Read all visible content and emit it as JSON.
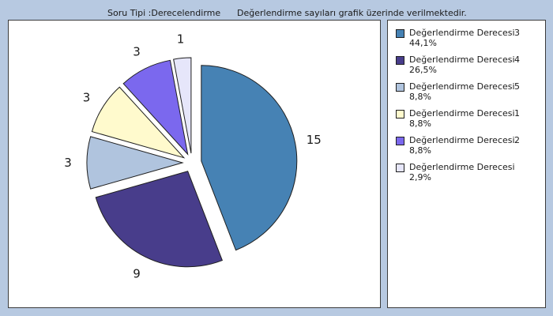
{
  "header": {
    "question_type": "Soru Tipi :Derecelendirme",
    "note": "Değerlendirme sayıları grafik üzerinde verilmektedir."
  },
  "chart_data": {
    "type": "pie",
    "title": "",
    "slices": [
      {
        "label": "Değerlendirme Derecesi",
        "code": "3",
        "value": 15,
        "percent": "44,1%",
        "color": "#4682b4"
      },
      {
        "label": "Değerlendirme Derecesi",
        "code": "4",
        "value": 9,
        "percent": "26,5%",
        "color": "#483d8b"
      },
      {
        "label": "Değerlendirme Derecesi",
        "code": "5",
        "value": 3,
        "percent": "8,8%",
        "color": "#b0c4de"
      },
      {
        "label": "Değerlendirme Derecesi",
        "code": "1",
        "value": 3,
        "percent": "8,8%",
        "color": "#fffacd"
      },
      {
        "label": "Değerlendirme Derecesi",
        "code": "2",
        "value": 3,
        "percent": "8,8%",
        "color": "#7b68ee"
      },
      {
        "label": "Değerlendirme Derecesi",
        "code": "",
        "value": 1,
        "percent": "2,9%",
        "color": "#e6e6fa"
      }
    ],
    "legend_position": "right"
  }
}
